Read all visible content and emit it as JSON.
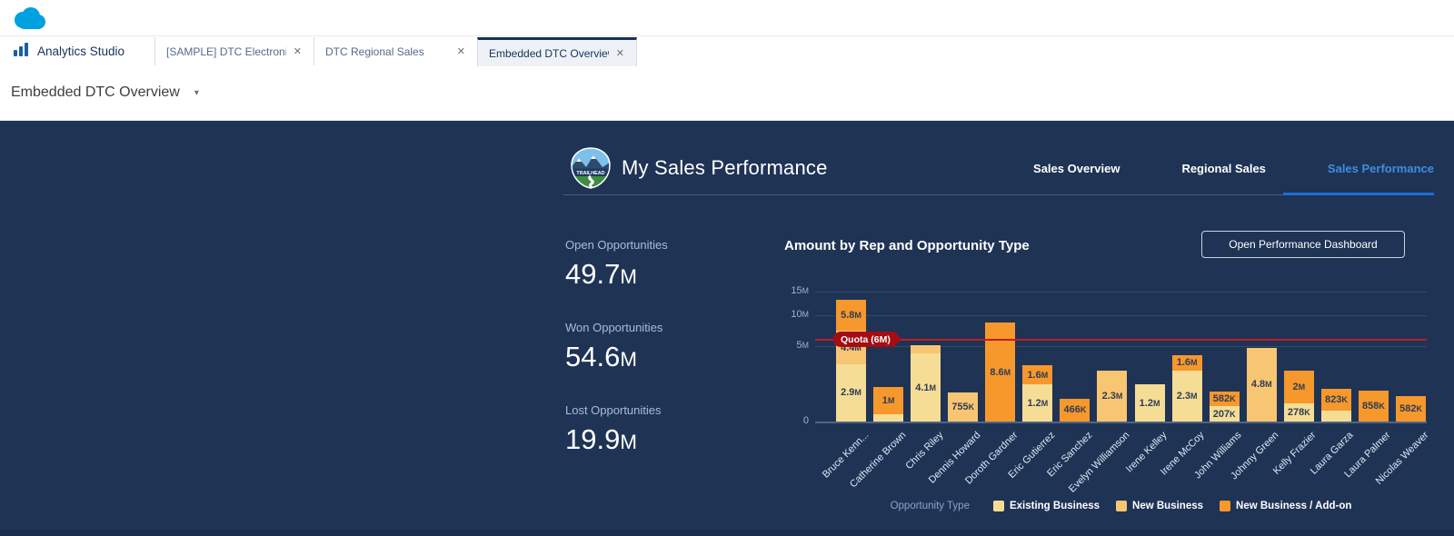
{
  "icons": {
    "app_logo": "salesforce-cloud",
    "home_icon": "bar-chart",
    "dashboard_logo": "trailhead-badge",
    "tab_close_glyph": "✕",
    "caret_glyph": "▾"
  },
  "browser": {
    "home_label": "Analytics Studio",
    "tabs": [
      {
        "label": "[SAMPLE] DTC Electronics S...",
        "active": false
      },
      {
        "label": "DTC Regional Sales",
        "active": false
      },
      {
        "label": "Embedded DTC Overview",
        "active": true
      }
    ],
    "asset_title": "Embedded DTC Overview"
  },
  "dashboard": {
    "title": "My Sales Performance",
    "badge_text": "TRAILHEAD",
    "nav": [
      {
        "label": "Sales Overview",
        "active": false
      },
      {
        "label": "Regional Sales",
        "active": false
      },
      {
        "label": "Sales Performance",
        "active": true
      }
    ],
    "kpis": [
      {
        "label": "Open Opportunities",
        "value": "49.7M"
      },
      {
        "label": "Won Opportunities",
        "value": "54.6M"
      },
      {
        "label": "Lost Opportunities",
        "value": "19.9M"
      }
    ],
    "button_label": "Open Performance Dashboard",
    "accent_blue": "#3f8ce0"
  },
  "chart_data": {
    "type": "bar",
    "stacked": true,
    "scale": "sqrt",
    "title": "Amount by Rep and Opportunity Type",
    "xlabel": "",
    "ylabel": "",
    "ylim_millions": [
      0,
      15
    ],
    "yticks": [
      {
        "value_m": 0,
        "label": "0"
      },
      {
        "value_m": 5,
        "label": "5M"
      },
      {
        "value_m": 10,
        "label": "10M"
      },
      {
        "value_m": 15,
        "label": "15M"
      }
    ],
    "quota": {
      "value_m": 6,
      "label": "Quota (6M)",
      "line_color": "#c11e24",
      "badge_color": "#a50d12"
    },
    "legend_title": "Opportunity Type",
    "legend_position": "bottom",
    "series_types": [
      {
        "key": "existing",
        "label": "Existing Business",
        "color": "#f5dd96"
      },
      {
        "key": "new_business",
        "label": "New Business",
        "color": "#f8c572"
      },
      {
        "key": "add_on",
        "label": "New Business / Add-on",
        "color": "#f6982b"
      }
    ],
    "categories": [
      "Bruce Kenn...",
      "Catherine Brown",
      "Chris Riley",
      "Dennis Howard",
      "Doroth Gardner",
      "Eric Gutierrez",
      "Eric Sanchez",
      "Evelyn Williamson",
      "Irene Kelley",
      "Irene McCoy",
      "John Williams",
      "Johnny Green",
      "Kelly Frazier",
      "Laura Garza",
      "Laura Palmer",
      "Nicolas Weaver"
    ],
    "bars": [
      {
        "name": "Bruce Kenn...",
        "segments": [
          {
            "type": "existing",
            "value_m": 2.9,
            "label": "2.9M"
          },
          {
            "type": "new_business",
            "value_m": 4.4,
            "label": "4.4M"
          },
          {
            "type": "add_on",
            "value_m": 5.8,
            "label": "5.8M"
          }
        ]
      },
      {
        "name": "Catherine Brown",
        "segments": [
          {
            "type": "existing",
            "value_m": 0.05,
            "label": ""
          },
          {
            "type": "add_on",
            "value_m": 1.0,
            "label": "1M"
          }
        ]
      },
      {
        "name": "Chris Riley",
        "segments": [
          {
            "type": "existing",
            "value_m": 4.1,
            "label": "4.1M"
          },
          {
            "type": "new_business",
            "value_m": 1.0,
            "label": ""
          }
        ]
      },
      {
        "name": "Dennis Howard",
        "segments": [
          {
            "type": "new_business",
            "value_m": 0.755,
            "label": "755K"
          }
        ]
      },
      {
        "name": "Doroth Gardner",
        "segments": [
          {
            "type": "add_on",
            "value_m": 8.6,
            "label": "8.6M"
          }
        ]
      },
      {
        "name": "Eric Gutierrez",
        "segments": [
          {
            "type": "existing",
            "value_m": 1.2,
            "label": "1.2M"
          },
          {
            "type": "add_on",
            "value_m": 1.6,
            "label": "1.6M"
          }
        ]
      },
      {
        "name": "Eric Sanchez",
        "segments": [
          {
            "type": "add_on",
            "value_m": 0.466,
            "label": "466K"
          }
        ]
      },
      {
        "name": "Evelyn Williamson",
        "segments": [
          {
            "type": "new_business",
            "value_m": 2.3,
            "label": "2.3M"
          }
        ]
      },
      {
        "name": "Irene Kelley",
        "segments": [
          {
            "type": "existing",
            "value_m": 1.2,
            "label": "1.2M"
          }
        ]
      },
      {
        "name": "Irene McCoy",
        "segments": [
          {
            "type": "existing",
            "value_m": 2.3,
            "label": "2.3M"
          },
          {
            "type": "add_on",
            "value_m": 1.6,
            "label": "1.6M"
          }
        ]
      },
      {
        "name": "John Williams",
        "segments": [
          {
            "type": "existing",
            "value_m": 0.207,
            "label": "207K"
          },
          {
            "type": "add_on",
            "value_m": 0.582,
            "label": "582K"
          }
        ]
      },
      {
        "name": "Johnny Green",
        "segments": [
          {
            "type": "new_business",
            "value_m": 4.8,
            "label": "4.8M"
          }
        ]
      },
      {
        "name": "Kelly Frazier",
        "segments": [
          {
            "type": "existing",
            "value_m": 0.278,
            "label": "278K"
          },
          {
            "type": "add_on",
            "value_m": 2.0,
            "label": "2M"
          }
        ]
      },
      {
        "name": "Laura Garza",
        "segments": [
          {
            "type": "existing",
            "value_m": 0.1,
            "label": ""
          },
          {
            "type": "add_on",
            "value_m": 0.823,
            "label": "823K"
          }
        ]
      },
      {
        "name": "Laura Palmer",
        "segments": [
          {
            "type": "add_on",
            "value_m": 0.858,
            "label": "858K"
          }
        ]
      },
      {
        "name": "Nicolas Weaver",
        "segments": [
          {
            "type": "add_on",
            "value_m": 0.582,
            "label": "582K"
          }
        ]
      }
    ]
  }
}
